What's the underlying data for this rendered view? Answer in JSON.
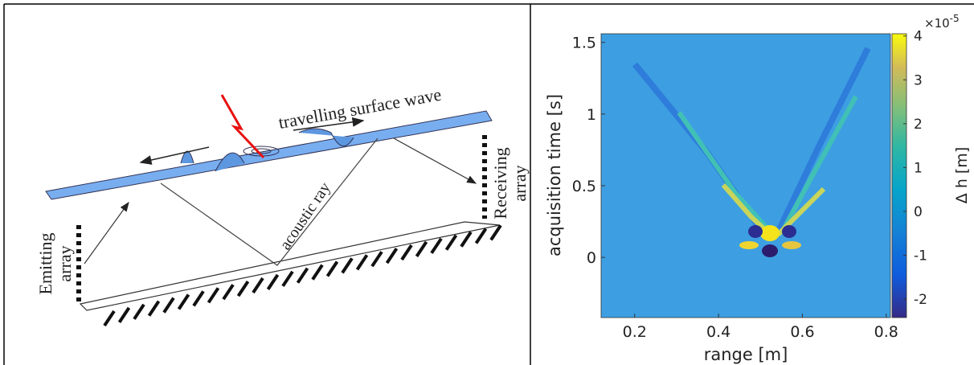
{
  "diagram": {
    "labels": {
      "wave": "travelling surface wave",
      "ray": "acoustic ray",
      "emitting": [
        "Emitting",
        "array"
      ],
      "receiving": [
        "Receiving",
        "array"
      ]
    }
  },
  "chart_data": {
    "type": "heatmap",
    "xlabel": "range [m]",
    "ylabel": "acquisition time [s]",
    "xlim": [
      0.12,
      0.81
    ],
    "xticks": [
      0.2,
      0.4,
      0.6,
      0.8
    ],
    "ylim": [
      -0.42,
      1.56
    ],
    "yticks": [
      0,
      0.5,
      1,
      1.5
    ],
    "colorbar": {
      "label": "Δ h [m]",
      "multiplier": "×10",
      "exponent": "-5",
      "lim": [
        -2.42,
        4.05
      ],
      "ticks": [
        -2,
        -1,
        0,
        1,
        2,
        3,
        4
      ]
    }
  }
}
